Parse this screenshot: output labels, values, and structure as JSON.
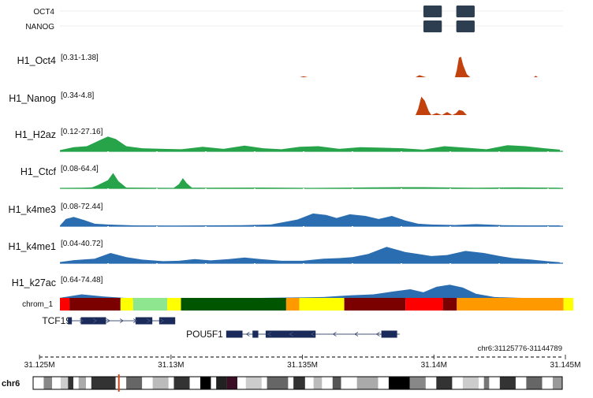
{
  "colors": {
    "peak_block": "#2c3e50",
    "tf_signal": "#c2410c",
    "h2az_ctcf": "#27a34a",
    "histone": "#2a6db0",
    "gene": "#1a2a5a",
    "ideogram_marker": "#d0451b"
  },
  "peak_tracks": [
    {
      "label": "OCT4",
      "peaks": [
        [
          31139600,
          31140300
        ],
        [
          31140850,
          31141550
        ]
      ]
    },
    {
      "label": "NANOG",
      "peaks": [
        [
          31139600,
          31140300
        ],
        [
          31140850,
          31141550
        ]
      ]
    }
  ],
  "signal_tracks": [
    {
      "label": "H1_Oct4",
      "range": "[0.31-1.38]",
      "color": "#c2410c",
      "points": [
        [
          31134900,
          0
        ],
        [
          31135050,
          0.05
        ],
        [
          31135200,
          0
        ],
        [
          31139300,
          0
        ],
        [
          31139450,
          0.1
        ],
        [
          31139550,
          0.06
        ],
        [
          31139700,
          0
        ],
        [
          31140800,
          0
        ],
        [
          31140870,
          0.35
        ],
        [
          31140950,
          0.95
        ],
        [
          31141030,
          1.0
        ],
        [
          31141110,
          0.6
        ],
        [
          31141250,
          0.15
        ],
        [
          31141380,
          0
        ],
        [
          31143800,
          0
        ],
        [
          31143870,
          0.07
        ],
        [
          31143950,
          0
        ]
      ]
    },
    {
      "label": "H1_Nanog",
      "range": "[0.34-4.8]",
      "color": "#c2410c",
      "points": [
        [
          31139300,
          0
        ],
        [
          31139400,
          0.3
        ],
        [
          31139520,
          0.9
        ],
        [
          31139650,
          0.7
        ],
        [
          31139800,
          0.2
        ],
        [
          31139900,
          0
        ],
        [
          31140100,
          0.1
        ],
        [
          31140300,
          0
        ],
        [
          31140500,
          0.15
        ],
        [
          31140700,
          0
        ],
        [
          31140850,
          0.1
        ],
        [
          31140950,
          0.25
        ],
        [
          31141100,
          0.2
        ],
        [
          31141250,
          0
        ]
      ]
    },
    {
      "label": "H1_H2az",
      "range": "[0.12-27.16]",
      "color": "#27a34a",
      "points": [
        [
          31125776,
          0.06
        ],
        [
          31126300,
          0.2
        ],
        [
          31126800,
          0.25
        ],
        [
          31127300,
          0.55
        ],
        [
          31127600,
          0.72
        ],
        [
          31127900,
          0.6
        ],
        [
          31128300,
          0.25
        ],
        [
          31128900,
          0.15
        ],
        [
          31129700,
          0.12
        ],
        [
          31130400,
          0.1
        ],
        [
          31131200,
          0.22
        ],
        [
          31132000,
          0.12
        ],
        [
          31132800,
          0.28
        ],
        [
          31133500,
          0.15
        ],
        [
          31134200,
          0.1
        ],
        [
          31134900,
          0.22
        ],
        [
          31135600,
          0.25
        ],
        [
          31136400,
          0.12
        ],
        [
          31137200,
          0.2
        ],
        [
          31138000,
          0.18
        ],
        [
          31138800,
          0.15
        ],
        [
          31139600,
          0.08
        ],
        [
          31140400,
          0.25
        ],
        [
          31141200,
          0.18
        ],
        [
          31142000,
          0.1
        ],
        [
          31142800,
          0.3
        ],
        [
          31143500,
          0.25
        ],
        [
          31144200,
          0.15
        ],
        [
          31144789,
          0.08
        ]
      ]
    },
    {
      "label": "H1_Ctcf",
      "range": "[0.08-64.4]",
      "color": "#27a34a",
      "points": [
        [
          31125776,
          0.02
        ],
        [
          31126600,
          0.03
        ],
        [
          31127000,
          0.05
        ],
        [
          31127200,
          0.15
        ],
        [
          31127600,
          0.4
        ],
        [
          31127800,
          0.75
        ],
        [
          31128000,
          0.35
        ],
        [
          31128300,
          0.04
        ],
        [
          31130100,
          0.02
        ],
        [
          31130300,
          0.2
        ],
        [
          31130450,
          0.5
        ],
        [
          31130600,
          0.25
        ],
        [
          31130800,
          0.03
        ],
        [
          31133500,
          0.04
        ],
        [
          31135400,
          0.02
        ],
        [
          31137600,
          0.05
        ],
        [
          31139600,
          0.06
        ],
        [
          31141600,
          0.03
        ],
        [
          31143200,
          0.05
        ],
        [
          31144789,
          0.03
        ]
      ]
    },
    {
      "label": "H1_k4me3",
      "range": "[0.08-72.44]",
      "color": "#2a6db0",
      "points": [
        [
          31125776,
          0.03
        ],
        [
          31126000,
          0.35
        ],
        [
          31126300,
          0.45
        ],
        [
          31126700,
          0.3
        ],
        [
          31127100,
          0.12
        ],
        [
          31127600,
          0.08
        ],
        [
          31128600,
          0.04
        ],
        [
          31130100,
          0.03
        ],
        [
          31132700,
          0.05
        ],
        [
          31133800,
          0.08
        ],
        [
          31134300,
          0.2
        ],
        [
          31134800,
          0.32
        ],
        [
          31135400,
          0.62
        ],
        [
          31135900,
          0.55
        ],
        [
          31136300,
          0.4
        ],
        [
          31136800,
          0.58
        ],
        [
          31137400,
          0.5
        ],
        [
          31137900,
          0.35
        ],
        [
          31138400,
          0.5
        ],
        [
          31138900,
          0.28
        ],
        [
          31139400,
          0.12
        ],
        [
          31139900,
          0.08
        ],
        [
          31140800,
          0.06
        ],
        [
          31141600,
          0.1
        ],
        [
          31142600,
          0.05
        ],
        [
          31143600,
          0.04
        ],
        [
          31144789,
          0.04
        ]
      ]
    },
    {
      "label": "H1_k4me1",
      "range": "[0.04-40.72]",
      "color": "#2a6db0",
      "points": [
        [
          31125776,
          0.06
        ],
        [
          31126300,
          0.15
        ],
        [
          31127100,
          0.22
        ],
        [
          31127700,
          0.5
        ],
        [
          31128300,
          0.3
        ],
        [
          31128900,
          0.18
        ],
        [
          31129700,
          0.1
        ],
        [
          31130300,
          0.12
        ],
        [
          31130900,
          0.2
        ],
        [
          31131500,
          0.14
        ],
        [
          31132200,
          0.2
        ],
        [
          31132800,
          0.28
        ],
        [
          31133400,
          0.2
        ],
        [
          31134200,
          0.12
        ],
        [
          31135000,
          0.12
        ],
        [
          31135800,
          0.22
        ],
        [
          31136400,
          0.25
        ],
        [
          31136900,
          0.3
        ],
        [
          31137500,
          0.45
        ],
        [
          31138200,
          0.8
        ],
        [
          31138900,
          0.55
        ],
        [
          31139400,
          0.45
        ],
        [
          31139900,
          0.35
        ],
        [
          31140500,
          0.4
        ],
        [
          31141200,
          0.6
        ],
        [
          31141900,
          0.5
        ],
        [
          31142500,
          0.35
        ],
        [
          31143000,
          0.25
        ],
        [
          31143700,
          0.18
        ],
        [
          31144300,
          0.1
        ],
        [
          31144789,
          0.05
        ]
      ]
    },
    {
      "label": "H1_k27ac",
      "range": "[0.64-74.48]",
      "color": "#2a6db0",
      "points": [
        [
          31125776,
          0.08
        ],
        [
          31126600,
          0.25
        ],
        [
          31127400,
          0.15
        ],
        [
          31128200,
          0.08
        ],
        [
          31129400,
          0.05
        ],
        [
          31130800,
          0.05
        ],
        [
          31132200,
          0.05
        ],
        [
          31133600,
          0.08
        ],
        [
          31134800,
          0.1
        ],
        [
          31135800,
          0.12
        ],
        [
          31136800,
          0.2
        ],
        [
          31137700,
          0.25
        ],
        [
          31138500,
          0.4
        ],
        [
          31139100,
          0.5
        ],
        [
          31139600,
          0.35
        ],
        [
          31140100,
          0.62
        ],
        [
          31140600,
          0.72
        ],
        [
          31141100,
          0.58
        ],
        [
          31141600,
          0.28
        ],
        [
          31142300,
          0.12
        ],
        [
          31143200,
          0.08
        ],
        [
          31144100,
          0.06
        ],
        [
          31144789,
          0.05
        ]
      ]
    }
  ],
  "chromhmm": {
    "label": "chrom_1",
    "segments": [
      {
        "start": 31125776,
        "end": 31126140,
        "color": "#ff0000"
      },
      {
        "start": 31126140,
        "end": 31128080,
        "color": "#7b0000"
      },
      {
        "start": 31128080,
        "end": 31128560,
        "color": "#ffff00"
      },
      {
        "start": 31128560,
        "end": 31129860,
        "color": "#8ee68e"
      },
      {
        "start": 31129860,
        "end": 31130380,
        "color": "#ffff00"
      },
      {
        "start": 31130380,
        "end": 31134380,
        "color": "#005500"
      },
      {
        "start": 31134380,
        "end": 31134880,
        "color": "#ff9900"
      },
      {
        "start": 31134880,
        "end": 31136590,
        "color": "#ffff00"
      },
      {
        "start": 31136590,
        "end": 31138920,
        "color": "#7b0000"
      },
      {
        "start": 31138920,
        "end": 31140340,
        "color": "#ff0000"
      },
      {
        "start": 31140340,
        "end": 31140870,
        "color": "#7b0000"
      },
      {
        "start": 31140870,
        "end": 31144930,
        "color": "#ff9900"
      },
      {
        "start": 31144930,
        "end": 31147040,
        "color": "#ffff00"
      },
      {
        "start": 31147040,
        "end": 31148500,
        "color": "#8ee68e"
      }
    ]
  },
  "genes": [
    {
      "name": "TCF19",
      "strand": "+",
      "start": 31126080,
      "end": 31130160,
      "exons": [
        [
          31126080,
          31126230
        ],
        [
          31126570,
          31127530
        ],
        [
          31128650,
          31129290
        ],
        [
          31129550,
          31130160
        ]
      ]
    },
    {
      "name": "POU5F1",
      "strand": "-",
      "start": 31132100,
      "end": 31138700,
      "exons": [
        [
          31132100,
          31132720
        ],
        [
          31133100,
          31133320
        ],
        [
          31133600,
          31135500
        ],
        [
          31138000,
          31138600
        ]
      ]
    }
  ],
  "locus": "chr6:31125776-31144789",
  "axis": {
    "domain": [
      31125776,
      31145000
    ],
    "ticks": [
      {
        "pos": 31125000,
        "label": "31.125M"
      },
      {
        "pos": 31130000,
        "label": "31.13M"
      },
      {
        "pos": 31135000,
        "label": "31.135M"
      },
      {
        "pos": 31140000,
        "label": "31.14M"
      },
      {
        "pos": 31145000,
        "label": "31.145M"
      }
    ]
  },
  "ideogram": {
    "label": "chr6",
    "marker": 0.162,
    "bands": [
      [
        0.0,
        0.02,
        "#ffffff"
      ],
      [
        0.02,
        0.036,
        "#888888"
      ],
      [
        0.036,
        0.052,
        "#ffffff"
      ],
      [
        0.052,
        0.066,
        "#cccccc"
      ],
      [
        0.066,
        0.076,
        "#333333"
      ],
      [
        0.076,
        0.086,
        "#ffffff"
      ],
      [
        0.086,
        0.1,
        "#aaaaaa"
      ],
      [
        0.1,
        0.11,
        "#ffffff"
      ],
      [
        0.11,
        0.156,
        "#333333"
      ],
      [
        0.156,
        0.176,
        "#ffffff"
      ],
      [
        0.176,
        0.206,
        "#666666"
      ],
      [
        0.206,
        0.226,
        "#ffffff"
      ],
      [
        0.226,
        0.256,
        "#bbbbbb"
      ],
      [
        0.256,
        0.266,
        "#ffffff"
      ],
      [
        0.266,
        0.296,
        "#333333"
      ],
      [
        0.296,
        0.316,
        "#ffffff"
      ],
      [
        0.316,
        0.336,
        "#000000"
      ],
      [
        0.336,
        0.346,
        "#ffffff"
      ],
      [
        0.346,
        0.366,
        "#222222"
      ],
      [
        0.366,
        0.386,
        "#3a0f25"
      ],
      [
        0.386,
        0.402,
        "#ffffff"
      ],
      [
        0.402,
        0.432,
        "#cccccc"
      ],
      [
        0.432,
        0.442,
        "#ffffff"
      ],
      [
        0.442,
        0.482,
        "#666666"
      ],
      [
        0.482,
        0.492,
        "#ffffff"
      ],
      [
        0.492,
        0.514,
        "#333333"
      ],
      [
        0.514,
        0.53,
        "#ffffff"
      ],
      [
        0.53,
        0.546,
        "#bbbbbb"
      ],
      [
        0.546,
        0.566,
        "#ffffff"
      ],
      [
        0.566,
        0.582,
        "#555555"
      ],
      [
        0.582,
        0.612,
        "#ffffff"
      ],
      [
        0.612,
        0.652,
        "#aaaaaa"
      ],
      [
        0.652,
        0.672,
        "#ffffff"
      ],
      [
        0.672,
        0.712,
        "#000000"
      ],
      [
        0.712,
        0.742,
        "#888888"
      ],
      [
        0.742,
        0.762,
        "#ffffff"
      ],
      [
        0.762,
        0.792,
        "#333333"
      ],
      [
        0.792,
        0.812,
        "#ffffff"
      ],
      [
        0.812,
        0.842,
        "#cccccc"
      ],
      [
        0.842,
        0.852,
        "#ffffff"
      ],
      [
        0.852,
        0.862,
        "#777777"
      ],
      [
        0.862,
        0.882,
        "#ffffff"
      ],
      [
        0.882,
        0.912,
        "#333333"
      ],
      [
        0.912,
        0.932,
        "#ffffff"
      ],
      [
        0.932,
        0.962,
        "#666666"
      ],
      [
        0.962,
        0.982,
        "#ffffff"
      ],
      [
        0.982,
        1.0,
        "#999999"
      ]
    ]
  },
  "chart_data": {
    "type": "area",
    "title": "",
    "locus": "chr6:31125776-31144789",
    "x_range": [
      31125776,
      31144789
    ],
    "tick_labels": [
      "31.125M",
      "31.13M",
      "31.135M",
      "31.14M",
      "31.145M"
    ],
    "series": [
      {
        "name": "H1_Oct4",
        "range": "[0.31-1.38]"
      },
      {
        "name": "H1_Nanog",
        "range": "[0.34-4.8]"
      },
      {
        "name": "H1_H2az",
        "range": "[0.12-27.16]"
      },
      {
        "name": "H1_Ctcf",
        "range": "[0.08-64.4]"
      },
      {
        "name": "H1_k4me3",
        "range": "[0.08-72.44]"
      },
      {
        "name": "H1_k4me1",
        "range": "[0.04-40.72]"
      },
      {
        "name": "H1_k27ac",
        "range": "[0.64-74.48]"
      }
    ],
    "genes": [
      "TCF19",
      "POU5F1"
    ],
    "grid": false
  }
}
